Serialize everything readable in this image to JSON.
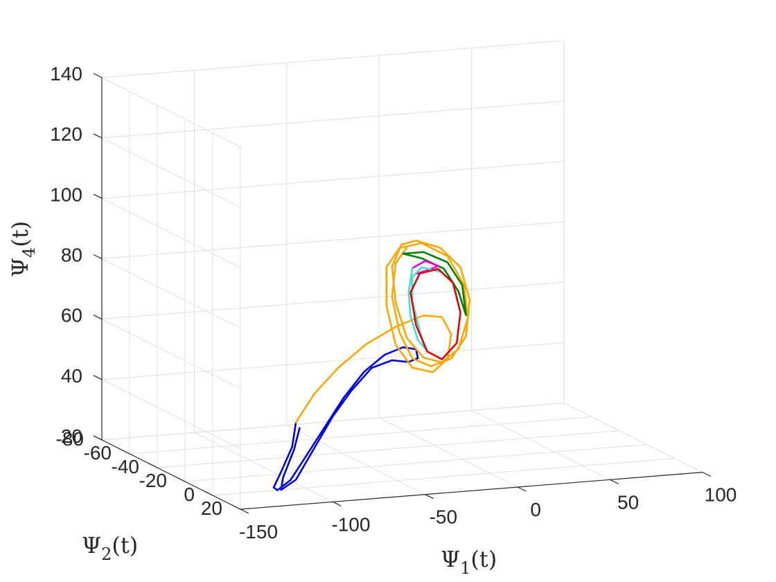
{
  "chart_data": {
    "type": "line",
    "projection": "3d",
    "title": "",
    "xlabel": {
      "symbol": "Ψ",
      "subscript": "1",
      "suffix": "(t)"
    },
    "ylabel": {
      "symbol": "Ψ",
      "subscript": "2",
      "suffix": "(t)"
    },
    "zlabel": {
      "symbol": "Ψ",
      "subscript": "4",
      "suffix": "(t)"
    },
    "xlim": [
      -150,
      100
    ],
    "ylim": [
      -80,
      20
    ],
    "zlim": [
      20,
      140
    ],
    "x_ticks": [
      "-150",
      "-100",
      "-50",
      "0",
      "50",
      "100"
    ],
    "y_ticks": [
      "-80",
      "-60",
      "-40",
      "-20",
      "0",
      "20"
    ],
    "z_ticks": [
      "20",
      "40",
      "60",
      "80",
      "100",
      "120",
      "140"
    ],
    "grid": true,
    "legend": "none",
    "series": [
      {
        "color": "#0000e0",
        "points": [
          [
            -105,
            0,
            42
          ],
          [
            -107,
            0,
            34
          ],
          [
            -113,
            0,
            26
          ],
          [
            -117,
            0,
            21
          ],
          [
            -115,
            0,
            20
          ],
          [
            -108,
            0,
            23
          ],
          [
            -99,
            0,
            31
          ],
          [
            -89,
            0,
            40
          ],
          [
            -79,
            0,
            49
          ],
          [
            -68,
            0,
            57
          ],
          [
            -57,
            0,
            62
          ],
          [
            -47,
            0,
            64
          ],
          [
            -40,
            0,
            63
          ],
          [
            -39,
            0,
            60
          ],
          [
            -44,
            0,
            59
          ],
          [
            -53,
            0,
            60
          ],
          [
            -64,
            0,
            58
          ],
          [
            -75,
            0,
            51
          ],
          [
            -85,
            0,
            43
          ],
          [
            -95,
            0,
            33
          ],
          [
            -105,
            0,
            23
          ],
          [
            -113,
            0,
            20
          ],
          [
            -112,
            0,
            24
          ],
          [
            -106,
            0,
            33
          ],
          [
            -103,
            0,
            40
          ]
        ]
      },
      {
        "color": "#ffa500",
        "points": [
          [
            -105,
            0,
            42
          ],
          [
            -95,
            0,
            51
          ],
          [
            -82,
            0,
            59
          ],
          [
            -67,
            0,
            66
          ],
          [
            -51,
            0,
            71
          ],
          [
            -36,
            0,
            74
          ],
          [
            -26,
            0,
            73
          ],
          [
            -21,
            0,
            67
          ],
          [
            -23,
            0,
            59
          ],
          [
            -31,
            0,
            55
          ],
          [
            -42,
            0,
            57
          ],
          [
            -51,
            0,
            65
          ],
          [
            -56,
            0,
            78
          ],
          [
            -56,
            0,
            91
          ],
          [
            -49,
            0,
            97
          ],
          [
            -37,
            0,
            98
          ],
          [
            -23,
            0,
            93
          ],
          [
            -14,
            0,
            83
          ],
          [
            -12,
            0,
            72
          ],
          [
            -17,
            0,
            62
          ],
          [
            -26,
            0,
            58
          ],
          [
            -36,
            0,
            60
          ],
          [
            -45,
            0,
            67
          ],
          [
            -51,
            0,
            79
          ],
          [
            -53,
            0,
            91
          ],
          [
            -48,
            0,
            98
          ],
          [
            -40,
            0,
            99
          ],
          [
            -27,
            0,
            96
          ],
          [
            -16,
            0,
            89
          ],
          [
            -11,
            0,
            78
          ],
          [
            -13,
            0,
            66
          ],
          [
            -21,
            0,
            59
          ],
          [
            -32,
            0,
            57
          ],
          [
            -42,
            0,
            60
          ],
          [
            -49,
            0,
            69
          ],
          [
            -53,
            0,
            81
          ],
          [
            -51,
            0,
            92
          ],
          [
            -45,
            0,
            97
          ]
        ]
      },
      {
        "color": "#008000",
        "points": [
          [
            -47,
            0,
            95
          ],
          [
            -36,
            0,
            95
          ],
          [
            -23,
            0,
            91
          ],
          [
            -15,
            0,
            83
          ],
          [
            -13,
            0,
            73
          ],
          [
            -17,
            0,
            81
          ],
          [
            -25,
            0,
            89
          ],
          [
            -37,
            0,
            93
          ],
          [
            -47,
            0,
            95
          ]
        ]
      },
      {
        "color": "#e600e6",
        "points": [
          [
            -42,
            0,
            90
          ],
          [
            -35,
            0,
            92
          ],
          [
            -28,
            0,
            90
          ],
          [
            -33,
            0,
            89
          ],
          [
            -40,
            0,
            88
          ]
        ]
      },
      {
        "color": "#40e0d0",
        "points": [
          [
            -42,
            0,
            90
          ],
          [
            -44,
            0,
            82
          ],
          [
            -43,
            0,
            74
          ],
          [
            -39,
            0,
            66
          ],
          [
            -35,
            0,
            63
          ],
          [
            -38,
            0,
            69
          ],
          [
            -42,
            0,
            79
          ],
          [
            -42,
            0,
            87
          ],
          [
            -37,
            0,
            90
          ],
          [
            -27,
            0,
            88
          ]
        ]
      },
      {
        "color": "#e60000",
        "points": [
          [
            -38,
            0,
            88
          ],
          [
            -28,
            0,
            89
          ],
          [
            -20,
            0,
            84
          ],
          [
            -16,
            0,
            74
          ],
          [
            -18,
            0,
            64
          ],
          [
            -26,
            0,
            59
          ],
          [
            -34,
            0,
            62
          ],
          [
            -40,
            0,
            71
          ],
          [
            -43,
            0,
            82
          ],
          [
            -38,
            0,
            88
          ]
        ]
      }
    ]
  }
}
